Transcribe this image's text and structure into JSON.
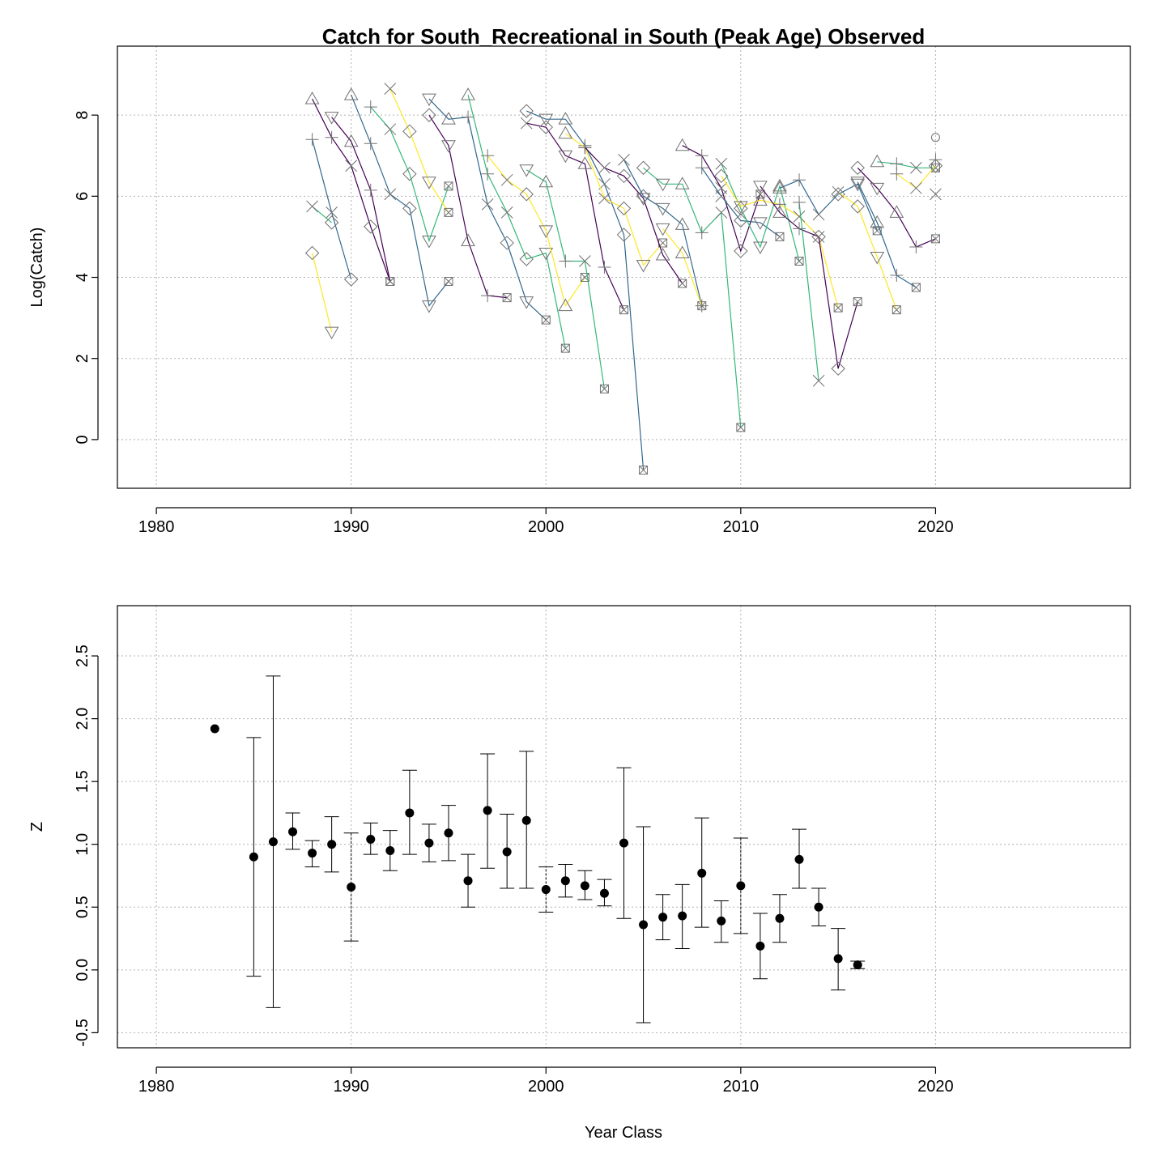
{
  "title": "Catch for South_Recreational in South (Peak Age) Observed",
  "chart_data": [
    {
      "type": "line",
      "ylabel": "Log(Catch)",
      "xlabel": "",
      "xlim": [
        1978,
        2030
      ],
      "ylim": [
        -1.2,
        9.7
      ],
      "xticks": [
        1980,
        1990,
        2000,
        2010,
        2020
      ],
      "yticks": [
        0,
        2,
        4,
        6,
        8
      ],
      "grid": true,
      "note": "Each line is one cohort, values by catch year; pch cycles by age.",
      "colors": [
        "#440154",
        "#31688E",
        "#35B779",
        "#FDE725"
      ],
      "symbols": [
        "triangle",
        "plus",
        "x",
        "diamond",
        "inv-triangle",
        "boxx",
        "circle"
      ],
      "series": [
        {
          "points": [
            [
              1988,
              8.4
            ],
            [
              1989,
              7.45
            ],
            [
              1990,
              6.75
            ],
            [
              1991,
              5.25
            ],
            [
              1992,
              3.9
            ]
          ]
        },
        {
          "points": [
            [
              1988,
              7.4
            ],
            [
              1989,
              5.6
            ],
            [
              1990,
              3.95
            ]
          ]
        },
        {
          "points": [
            [
              1988,
              5.75
            ],
            [
              1989,
              5.35
            ]
          ]
        },
        {
          "points": [
            [
              1988,
              4.6
            ],
            [
              1989,
              2.65
            ]
          ]
        },
        {
          "points": [
            [
              1989,
              7.95
            ],
            [
              1990,
              7.35
            ],
            [
              1991,
              6.15
            ],
            [
              1992,
              3.9
            ]
          ]
        },
        {
          "points": [
            [
              1990,
              8.5
            ],
            [
              1991,
              7.3
            ],
            [
              1992,
              6.05
            ],
            [
              1993,
              5.7
            ],
            [
              1994,
              3.3
            ],
            [
              1995,
              3.9
            ]
          ]
        },
        {
          "points": [
            [
              1991,
              8.2
            ],
            [
              1992,
              7.65
            ],
            [
              1993,
              6.55
            ],
            [
              1994,
              4.9
            ],
            [
              1995,
              6.25
            ]
          ]
        },
        {
          "points": [
            [
              1992,
              8.65
            ],
            [
              1993,
              7.6
            ],
            [
              1994,
              6.35
            ],
            [
              1995,
              5.6
            ]
          ]
        },
        {
          "points": [
            [
              1994,
              8.0
            ],
            [
              1995,
              7.25
            ],
            [
              1996,
              4.9
            ],
            [
              1997,
              3.55
            ],
            [
              1998,
              3.5
            ]
          ]
        },
        {
          "points": [
            [
              1994,
              8.4
            ],
            [
              1995,
              7.9
            ],
            [
              1996,
              7.95
            ],
            [
              1997,
              5.8
            ],
            [
              1998,
              4.85
            ],
            [
              1999,
              3.4
            ],
            [
              2000,
              2.95
            ]
          ]
        },
        {
          "points": [
            [
              1996,
              8.5
            ],
            [
              1997,
              6.55
            ],
            [
              1998,
              5.6
            ],
            [
              1999,
              4.45
            ],
            [
              2000,
              4.6
            ],
            [
              2001,
              2.25
            ]
          ]
        },
        {
          "points": [
            [
              1997,
              7.0
            ],
            [
              1998,
              6.4
            ],
            [
              1999,
              6.05
            ],
            [
              2000,
              5.15
            ],
            [
              2001,
              3.3
            ],
            [
              2002,
              4.0
            ]
          ]
        },
        {
          "points": [
            [
              1999,
              7.8
            ],
            [
              2000,
              7.7
            ],
            [
              2001,
              7.0
            ],
            [
              2002,
              6.8
            ],
            [
              2003,
              4.25
            ],
            [
              2004,
              3.2
            ]
          ]
        },
        {
          "points": [
            [
              1999,
              8.1
            ],
            [
              2000,
              7.9
            ],
            [
              2001,
              7.9
            ],
            [
              2002,
              7.25
            ],
            [
              2003,
              6.3
            ],
            [
              2004,
              5.05
            ],
            [
              2005,
              -0.75
            ]
          ]
        },
        {
          "points": [
            [
              1999,
              6.65
            ],
            [
              2000,
              6.35
            ],
            [
              2001,
              4.4
            ],
            [
              2002,
              4.4
            ],
            [
              2003,
              1.25
            ]
          ]
        },
        {
          "points": [
            [
              2001,
              7.55
            ],
            [
              2002,
              7.2
            ],
            [
              2003,
              5.95
            ],
            [
              2004,
              5.7
            ],
            [
              2005,
              4.3
            ],
            [
              2006,
              4.85
            ]
          ]
        },
        {
          "points": [
            [
              2002,
              7.2
            ],
            [
              2003,
              6.7
            ],
            [
              2004,
              6.5
            ],
            [
              2005,
              5.95
            ],
            [
              2006,
              4.55
            ],
            [
              2007,
              3.85
            ]
          ]
        },
        {
          "points": [
            [
              2004,
              6.9
            ],
            [
              2005,
              6.0
            ],
            [
              2006,
              5.7
            ],
            [
              2007,
              5.3
            ],
            [
              2008,
              3.3
            ]
          ]
        },
        {
          "points": [
            [
              2005,
              6.7
            ],
            [
              2006,
              6.3
            ],
            [
              2007,
              6.3
            ],
            [
              2008,
              5.1
            ],
            [
              2009,
              5.6
            ],
            [
              2010,
              0.3
            ]
          ]
        },
        {
          "points": [
            [
              2006,
              5.2
            ],
            [
              2007,
              4.6
            ],
            [
              2008,
              3.3
            ]
          ]
        },
        {
          "points": [
            [
              2007,
              7.25
            ],
            [
              2008,
              7.0
            ],
            [
              2009,
              6.2
            ],
            [
              2010,
              4.65
            ],
            [
              2011,
              6.05
            ]
          ]
        },
        {
          "points": [
            [
              2008,
              6.7
            ],
            [
              2009,
              6.0
            ],
            [
              2010,
              5.4
            ],
            [
              2011,
              5.35
            ],
            [
              2012,
              5.0
            ]
          ]
        },
        {
          "points": [
            [
              2009,
              6.8
            ],
            [
              2010,
              5.7
            ],
            [
              2011,
              4.75
            ],
            [
              2012,
              6.25
            ],
            [
              2013,
              4.4
            ]
          ]
        },
        {
          "points": [
            [
              2009,
              6.5
            ],
            [
              2010,
              5.75
            ],
            [
              2011,
              5.9
            ],
            [
              2012,
              5.8
            ],
            [
              2013,
              5.5
            ],
            [
              2014,
              5.0
            ],
            [
              2015,
              3.25
            ]
          ]
        },
        {
          "points": [
            [
              2011,
              6.25
            ],
            [
              2012,
              5.6
            ],
            [
              2013,
              5.2
            ],
            [
              2014,
              5.0
            ],
            [
              2015,
              1.75
            ],
            [
              2016,
              3.4
            ]
          ]
        },
        {
          "points": [
            [
              2012,
              6.2
            ],
            [
              2013,
              6.4
            ],
            [
              2014,
              5.55
            ],
            [
              2015,
              6.05
            ],
            [
              2016,
              6.3
            ],
            [
              2017,
              5.15
            ]
          ]
        },
        {
          "points": [
            [
              2013,
              5.85
            ],
            [
              2014,
              1.45
            ]
          ]
        },
        {
          "points": [
            [
              2015,
              6.1
            ],
            [
              2016,
              5.75
            ],
            [
              2017,
              4.5
            ],
            [
              2018,
              3.2
            ]
          ]
        },
        {
          "points": [
            [
              2016,
              6.7
            ],
            [
              2017,
              6.2
            ],
            [
              2018,
              5.6
            ],
            [
              2019,
              4.75
            ],
            [
              2020,
              4.95
            ]
          ]
        },
        {
          "points": [
            [
              2016,
              6.35
            ],
            [
              2017,
              5.35
            ],
            [
              2018,
              4.05
            ],
            [
              2019,
              3.75
            ]
          ]
        },
        {
          "points": [
            [
              2017,
              6.85
            ],
            [
              2018,
              6.8
            ],
            [
              2019,
              6.7
            ],
            [
              2020,
              6.7
            ]
          ]
        },
        {
          "points": [
            [
              2018,
              6.55
            ],
            [
              2019,
              6.2
            ],
            [
              2020,
              6.75
            ]
          ]
        },
        {
          "points": [
            [
              2020,
              7.45
            ]
          ]
        },
        {
          "points": [
            [
              2020,
              6.9
            ]
          ]
        },
        {
          "points": [
            [
              2020,
              6.05
            ]
          ]
        }
      ]
    },
    {
      "type": "scatter",
      "xlabel": "Year Class",
      "ylabel": "Z",
      "xlim": [
        1978,
        2030
      ],
      "ylim": [
        -0.62,
        2.9
      ],
      "xticks": [
        1980,
        1990,
        2000,
        2010,
        2020
      ],
      "yticks": [
        -0.5,
        0.0,
        0.5,
        1.0,
        1.5,
        2.0,
        2.5
      ],
      "ytick_labels": [
        "-0.5",
        "0.0",
        "0.5",
        "1.0",
        "1.5",
        "2.0",
        "2.5"
      ],
      "grid": true,
      "error_bars": true,
      "points": [
        {
          "x": 1983,
          "y": 1.92
        },
        {
          "x": 1985,
          "y": 0.9,
          "lo": -0.05,
          "hi": 1.85
        },
        {
          "x": 1986,
          "y": 1.02,
          "lo": -0.3,
          "hi": 2.34
        },
        {
          "x": 1987,
          "y": 1.1,
          "lo": 0.96,
          "hi": 1.25
        },
        {
          "x": 1988,
          "y": 0.93,
          "lo": 0.82,
          "hi": 1.03
        },
        {
          "x": 1989,
          "y": 1.0,
          "lo": 0.78,
          "hi": 1.22
        },
        {
          "x": 1990,
          "y": 0.66,
          "lo": 0.23,
          "hi": 1.09,
          "dashed": true
        },
        {
          "x": 1991,
          "y": 1.04,
          "lo": 0.92,
          "hi": 1.17
        },
        {
          "x": 1992,
          "y": 0.95,
          "lo": 0.79,
          "hi": 1.11
        },
        {
          "x": 1993,
          "y": 1.25,
          "lo": 0.92,
          "hi": 1.59
        },
        {
          "x": 1994,
          "y": 1.01,
          "lo": 0.86,
          "hi": 1.16
        },
        {
          "x": 1995,
          "y": 1.09,
          "lo": 0.87,
          "hi": 1.31
        },
        {
          "x": 1996,
          "y": 0.71,
          "lo": 0.5,
          "hi": 0.92
        },
        {
          "x": 1997,
          "y": 1.27,
          "lo": 0.81,
          "hi": 1.72
        },
        {
          "x": 1998,
          "y": 0.94,
          "lo": 0.65,
          "hi": 1.24
        },
        {
          "x": 1999,
          "y": 1.19,
          "lo": 0.65,
          "hi": 1.74
        },
        {
          "x": 2000,
          "y": 0.64,
          "lo": 0.46,
          "hi": 0.82,
          "dashed": true
        },
        {
          "x": 2001,
          "y": 0.71,
          "lo": 0.58,
          "hi": 0.84
        },
        {
          "x": 2002,
          "y": 0.67,
          "lo": 0.56,
          "hi": 0.79
        },
        {
          "x": 2003,
          "y": 0.61,
          "lo": 0.51,
          "hi": 0.72
        },
        {
          "x": 2004,
          "y": 1.01,
          "lo": 0.41,
          "hi": 1.61
        },
        {
          "x": 2005,
          "y": 0.36,
          "lo": -0.42,
          "hi": 1.14
        },
        {
          "x": 2006,
          "y": 0.42,
          "lo": 0.24,
          "hi": 0.6
        },
        {
          "x": 2007,
          "y": 0.43,
          "lo": 0.17,
          "hi": 0.68
        },
        {
          "x": 2008,
          "y": 0.77,
          "lo": 0.34,
          "hi": 1.21
        },
        {
          "x": 2009,
          "y": 0.39,
          "lo": 0.22,
          "hi": 0.55
        },
        {
          "x": 2010,
          "y": 0.67,
          "lo": 0.29,
          "hi": 1.05,
          "dashed": true
        },
        {
          "x": 2011,
          "y": 0.19,
          "lo": -0.07,
          "hi": 0.45
        },
        {
          "x": 2012,
          "y": 0.41,
          "lo": 0.22,
          "hi": 0.6
        },
        {
          "x": 2013,
          "y": 0.88,
          "lo": 0.65,
          "hi": 1.12
        },
        {
          "x": 2014,
          "y": 0.5,
          "lo": 0.35,
          "hi": 0.65
        },
        {
          "x": 2015,
          "y": 0.09,
          "lo": -0.16,
          "hi": 0.33
        },
        {
          "x": 2016,
          "y": 0.04,
          "lo": 0.01,
          "hi": 0.07
        }
      ]
    }
  ]
}
